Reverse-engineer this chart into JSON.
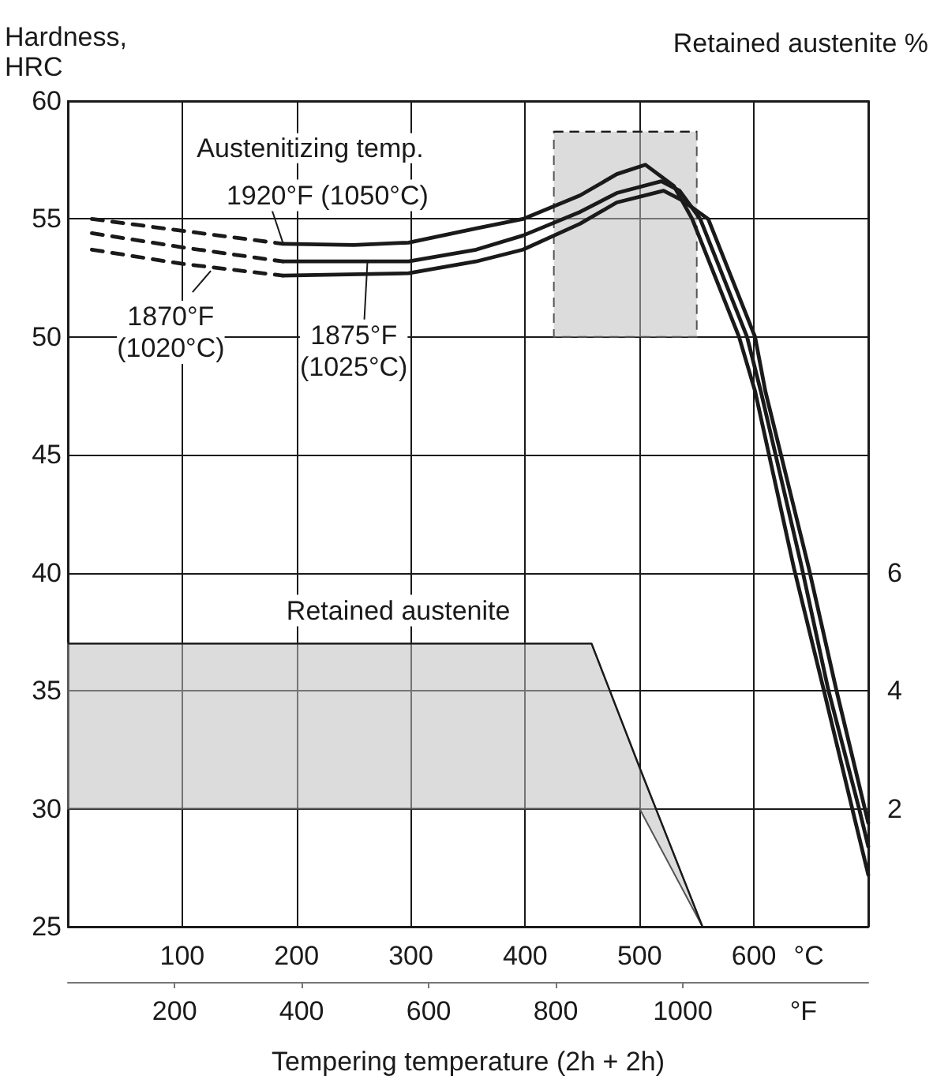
{
  "chart_data": {
    "type": "line",
    "xlabel": "Tempering temperature (2h + 2h)",
    "ylabel": "Hardness,\nHRC",
    "y2label": "Retained austenite %",
    "annotations": [
      "Austenitizing temp."
    ],
    "xlim": [
      0,
      700
    ],
    "xticks": [
      100,
      200,
      300,
      400,
      500,
      600,
      {
        "value": 648,
        "label": "°C"
      }
    ],
    "x2lim": [
      32,
      1292
    ],
    "x2ticks": [
      200,
      400,
      600,
      800,
      1000,
      {
        "value": 1190,
        "label": "°F"
      }
    ],
    "ylim": [
      25,
      60
    ],
    "yticks": [
      25,
      30,
      35,
      40,
      45,
      50,
      55,
      60
    ],
    "y2lim": [
      0,
      14
    ],
    "y2ticks": [
      2,
      4,
      6
    ],
    "grid": true,
    "legend": "top left",
    "marker": "none",
    "series": [
      {
        "line_style": "dashed",
        "color": "#1a1a1a",
        "x": [
          21,
          100,
          188
        ],
        "values": [
          55.0,
          54.5,
          53.95
        ]
      },
      {
        "name": "1920°F (1050°C)",
        "line_style": "solid",
        "color": "#1a1a1a",
        "x": [
          188,
          250,
          298,
          357,
          398,
          448,
          480,
          505,
          530,
          546,
          587,
          601,
          635,
          661,
          686,
          700
        ],
        "values": [
          53.95,
          53.9,
          54.0,
          54.6,
          55.0,
          56.0,
          56.9,
          57.3,
          56.4,
          55.0,
          50.0,
          47.7,
          40.2,
          35.05,
          30.0,
          27.2
        ]
      },
      {
        "line_style": "dashed",
        "color": "#1a1a1a",
        "x": [
          21,
          100,
          188
        ],
        "values": [
          54.4,
          53.8,
          53.2
        ]
      },
      {
        "name": "1875°F\n(1025°C)",
        "line_style": "solid",
        "color": "#1a1a1a",
        "x": [
          188,
          298,
          357,
          398,
          448,
          480,
          519,
          535,
          553,
          594,
          606,
          642,
          665,
          692,
          700
        ],
        "values": [
          53.2,
          53.2,
          53.7,
          54.3,
          55.3,
          56.1,
          56.6,
          56.2,
          55.0,
          50.0,
          47.7,
          40.2,
          35.05,
          30.0,
          28.4
        ]
      },
      {
        "line_style": "dashed",
        "color": "#1a1a1a",
        "x": [
          21,
          100,
          188
        ],
        "values": [
          53.7,
          53.1,
          52.6
        ]
      },
      {
        "name": "1870°F\n(1020°C)",
        "line_style": "solid",
        "color": "#1a1a1a",
        "x": [
          188,
          298,
          357,
          398,
          448,
          480,
          521,
          537,
          560,
          601,
          610,
          648,
          672,
          697,
          700
        ],
        "values": [
          52.6,
          52.7,
          53.2,
          53.7,
          54.8,
          55.7,
          56.2,
          55.8,
          55.0,
          50.0,
          47.7,
          40.2,
          35.05,
          30.0,
          29.4
        ]
      },
      {
        "name": "Retained austenite",
        "axis": "y2",
        "line_style": "solid",
        "color": "#1a1a1a",
        "x": [
          0,
          458,
          500,
          555
        ],
        "values": [
          4.8,
          4.8,
          2.7,
          0
        ],
        "lower": [
          2,
          2,
          2,
          0
        ],
        "upper": [
          4.8,
          4.8,
          2.7,
          0
        ]
      },
      {
        "line_style": "dashed",
        "color": "#1a1a1a",
        "x": [
          425,
          550
        ],
        "values": [
          58.7,
          58.7
        ],
        "lower": [
          50,
          50
        ],
        "upper": [
          58.7,
          58.7
        ]
      }
    ]
  }
}
